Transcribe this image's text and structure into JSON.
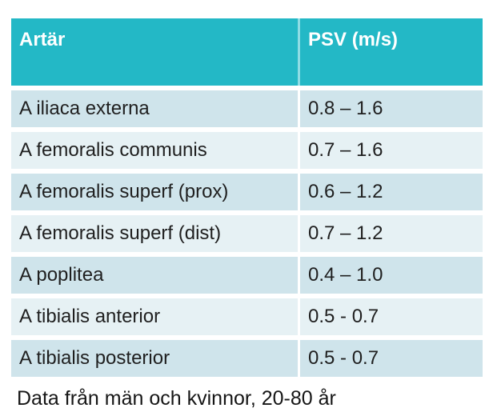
{
  "table": {
    "header": {
      "artery_label": "Artär",
      "psv_label": "PSV (m/s)"
    },
    "rows": [
      {
        "artery": "A iliaca externa",
        "psv": "0.8 – 1.6"
      },
      {
        "artery": "A femoralis communis",
        "psv": "0.7 – 1.6"
      },
      {
        "artery": "A femoralis superf (prox)",
        "psv": "0.6 – 1.2"
      },
      {
        "artery": "A femoralis superf (dist)",
        "psv": "0.7 – 1.2"
      },
      {
        "artery": "A poplitea",
        "psv": "0.4 – 1.0"
      },
      {
        "artery": "A tibialis anterior",
        "psv": "0.5 - 0.7"
      },
      {
        "artery": "A tibialis posterior",
        "psv": "0.5 - 0.7"
      }
    ]
  },
  "footer": {
    "note": "Data från män och kvinnor, 20-80 år"
  },
  "colors": {
    "header_bg": "#23b8c6",
    "header_text": "#ffffff",
    "row_odd_bg": "#cfe4eb",
    "row_even_bg": "#e6f1f4",
    "body_text": "#1f1f1f"
  }
}
